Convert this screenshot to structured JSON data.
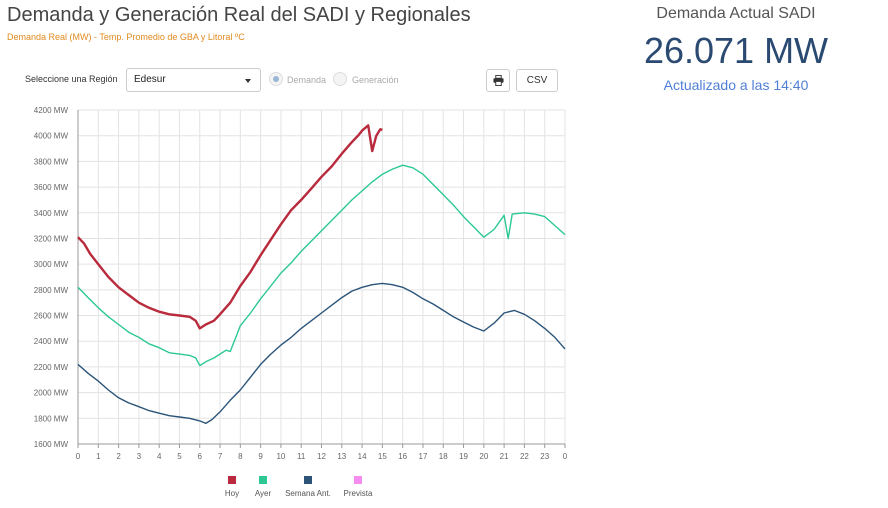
{
  "header": {
    "title": "Demanda y Generación Real del SADI y Regionales",
    "subtitle": "Demanda Real (MW) - Temp. Promedio de GBA y Litoral ºC"
  },
  "summary": {
    "title": "Demanda Actual SADI",
    "value": "26.071 MW",
    "updated": "Actualizado a las 14:40"
  },
  "controls": {
    "region_label": "Seleccione una Región",
    "region_value": "Edesur",
    "radio_demanda": "Demanda",
    "radio_generacion": "Generación",
    "csv_label": "CSV"
  },
  "icons": {
    "print": "print-icon",
    "dropdown": "chevron-down-icon"
  },
  "colors": {
    "hoy": "#b82a3c",
    "ayer": "#2cc894",
    "semana": "#2b5478",
    "prevista": "#f58cf0"
  },
  "chart_data": {
    "type": "line",
    "title": "",
    "xlabel": "",
    "ylabel": "",
    "x_ticks": [
      "0",
      "1",
      "2",
      "3",
      "4",
      "5",
      "6",
      "7",
      "8",
      "9",
      "10",
      "11",
      "12",
      "13",
      "14",
      "15",
      "16",
      "17",
      "18",
      "19",
      "20",
      "21",
      "22",
      "23",
      "0"
    ],
    "y_ticks": [
      "1600 MW",
      "1800 MW",
      "2000 MW",
      "2200 MW",
      "2400 MW",
      "2600 MW",
      "2800 MW",
      "3000 MW",
      "3200 MW",
      "3400 MW",
      "3600 MW",
      "3800 MW",
      "4000 MW",
      "4200 MW"
    ],
    "ylim": [
      1600,
      4200
    ],
    "xlim": [
      0,
      24
    ],
    "grid": true,
    "legend_position": "bottom-center",
    "series": [
      {
        "name": "Hoy",
        "color": "#b82a3c",
        "points": [
          [
            0,
            3210
          ],
          [
            0.3,
            3160
          ],
          [
            0.6,
            3080
          ],
          [
            1,
            3000
          ],
          [
            1.5,
            2900
          ],
          [
            2,
            2820
          ],
          [
            2.5,
            2760
          ],
          [
            3,
            2700
          ],
          [
            3.5,
            2660
          ],
          [
            4,
            2630
          ],
          [
            4.5,
            2610
          ],
          [
            5,
            2600
          ],
          [
            5.5,
            2590
          ],
          [
            5.8,
            2560
          ],
          [
            6,
            2500
          ],
          [
            6.3,
            2530
          ],
          [
            6.7,
            2560
          ],
          [
            7,
            2610
          ],
          [
            7.5,
            2700
          ],
          [
            8,
            2830
          ],
          [
            8.5,
            2940
          ],
          [
            9,
            3070
          ],
          [
            9.5,
            3190
          ],
          [
            10,
            3310
          ],
          [
            10.5,
            3420
          ],
          [
            11,
            3500
          ],
          [
            11.5,
            3590
          ],
          [
            12,
            3680
          ],
          [
            12.5,
            3760
          ],
          [
            13,
            3860
          ],
          [
            13.5,
            3950
          ],
          [
            13.8,
            4000
          ],
          [
            14,
            4040
          ],
          [
            14.3,
            4080
          ],
          [
            14.5,
            3880
          ],
          [
            14.7,
            4000
          ],
          [
            14.9,
            4050
          ],
          [
            15,
            4045
          ]
        ]
      },
      {
        "name": "Ayer",
        "color": "#2cc894",
        "points": [
          [
            0,
            2820
          ],
          [
            0.5,
            2740
          ],
          [
            1,
            2660
          ],
          [
            1.5,
            2590
          ],
          [
            2,
            2530
          ],
          [
            2.5,
            2470
          ],
          [
            3,
            2430
          ],
          [
            3.5,
            2380
          ],
          [
            4,
            2350
          ],
          [
            4.5,
            2310
          ],
          [
            5,
            2300
          ],
          [
            5.5,
            2290
          ],
          [
            5.8,
            2270
          ],
          [
            6,
            2210
          ],
          [
            6.3,
            2240
          ],
          [
            6.7,
            2270
          ],
          [
            7,
            2300
          ],
          [
            7.3,
            2330
          ],
          [
            7.5,
            2320
          ],
          [
            7.8,
            2440
          ],
          [
            8,
            2520
          ],
          [
            8.5,
            2620
          ],
          [
            9,
            2730
          ],
          [
            9.5,
            2830
          ],
          [
            10,
            2930
          ],
          [
            10.5,
            3010
          ],
          [
            11,
            3100
          ],
          [
            11.5,
            3180
          ],
          [
            12,
            3260
          ],
          [
            12.5,
            3340
          ],
          [
            13,
            3420
          ],
          [
            13.5,
            3500
          ],
          [
            14,
            3570
          ],
          [
            14.5,
            3640
          ],
          [
            15,
            3700
          ],
          [
            15.5,
            3740
          ],
          [
            16,
            3770
          ],
          [
            16.5,
            3750
          ],
          [
            17,
            3700
          ],
          [
            17.5,
            3620
          ],
          [
            18,
            3540
          ],
          [
            18.5,
            3460
          ],
          [
            19,
            3370
          ],
          [
            19.5,
            3290
          ],
          [
            20,
            3210
          ],
          [
            20.5,
            3270
          ],
          [
            21,
            3380
          ],
          [
            21.2,
            3200
          ],
          [
            21.4,
            3390
          ],
          [
            22,
            3400
          ],
          [
            22.5,
            3390
          ],
          [
            23,
            3370
          ],
          [
            23.5,
            3300
          ],
          [
            24,
            3230
          ]
        ]
      },
      {
        "name": "Semana Ant.",
        "color": "#2b5478",
        "points": [
          [
            0,
            2220
          ],
          [
            0.5,
            2150
          ],
          [
            1,
            2090
          ],
          [
            1.5,
            2020
          ],
          [
            2,
            1960
          ],
          [
            2.5,
            1920
          ],
          [
            3,
            1890
          ],
          [
            3.5,
            1860
          ],
          [
            4,
            1840
          ],
          [
            4.5,
            1820
          ],
          [
            5,
            1810
          ],
          [
            5.5,
            1800
          ],
          [
            6,
            1780
          ],
          [
            6.3,
            1760
          ],
          [
            6.6,
            1790
          ],
          [
            7,
            1850
          ],
          [
            7.5,
            1940
          ],
          [
            8,
            2020
          ],
          [
            8.5,
            2120
          ],
          [
            9,
            2220
          ],
          [
            9.5,
            2300
          ],
          [
            10,
            2370
          ],
          [
            10.5,
            2430
          ],
          [
            11,
            2500
          ],
          [
            11.5,
            2560
          ],
          [
            12,
            2620
          ],
          [
            12.5,
            2680
          ],
          [
            13,
            2740
          ],
          [
            13.5,
            2790
          ],
          [
            14,
            2820
          ],
          [
            14.5,
            2840
          ],
          [
            15,
            2850
          ],
          [
            15.5,
            2840
          ],
          [
            16,
            2820
          ],
          [
            16.5,
            2780
          ],
          [
            17,
            2730
          ],
          [
            17.5,
            2690
          ],
          [
            18,
            2640
          ],
          [
            18.5,
            2590
          ],
          [
            19,
            2550
          ],
          [
            19.5,
            2510
          ],
          [
            20,
            2480
          ],
          [
            20.5,
            2540
          ],
          [
            21,
            2620
          ],
          [
            21.5,
            2640
          ],
          [
            22,
            2610
          ],
          [
            22.5,
            2560
          ],
          [
            23,
            2500
          ],
          [
            23.5,
            2430
          ],
          [
            24,
            2340
          ]
        ]
      },
      {
        "name": "Prevista",
        "color": "#f58cf0",
        "points": []
      }
    ]
  }
}
